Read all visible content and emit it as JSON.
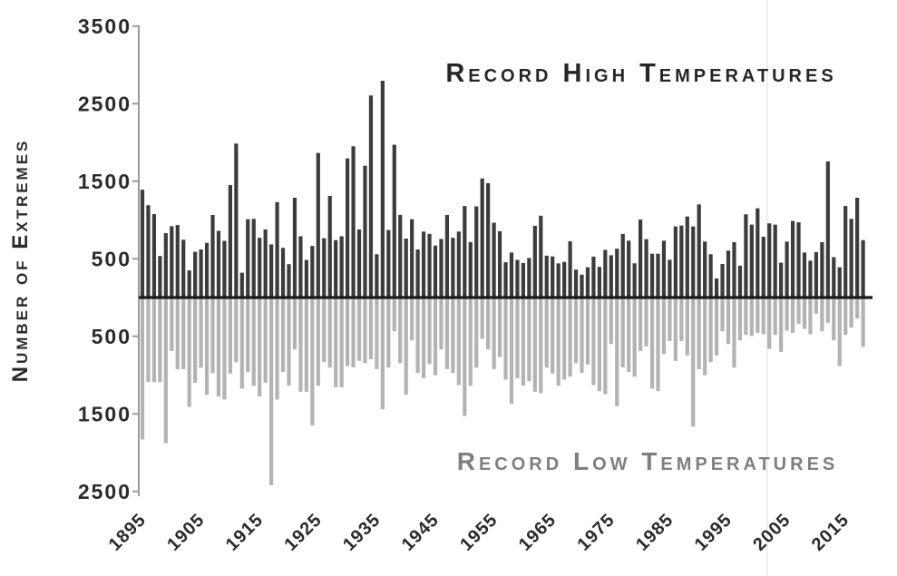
{
  "title_high": "Record High Temperatures",
  "title_low": "Record Low Temperatures",
  "y_axis_title": "Number of Extremes",
  "colors": {
    "high_bar": "#3c3c3c",
    "low_bar": "#b3b3b3",
    "high_title": "#262626",
    "low_title": "#7f7f7f",
    "axis_line": "#9a9a9a",
    "zero_line": "#1a1a1a",
    "tick_label": "#2b2b2b",
    "seam_line": "#e9e9e9",
    "background": "#ffffff"
  },
  "y_ticks_top": [
    3500,
    2500,
    1500,
    500
  ],
  "y_ticks_bottom": [
    500,
    1500,
    2500
  ],
  "x_ticks": [
    1895,
    1905,
    1915,
    1925,
    1935,
    1945,
    1955,
    1965,
    1975,
    1985,
    1995,
    2005,
    2015
  ],
  "chart_data": {
    "type": "bar",
    "title": "Record High Temperatures vs Record Low Temperatures",
    "ylabel": "Number of Extremes",
    "ylim": [
      -2500,
      3500
    ],
    "grid": false,
    "legend_position": "inline-annotations",
    "x": [
      1895,
      1896,
      1897,
      1898,
      1899,
      1900,
      1901,
      1902,
      1903,
      1904,
      1905,
      1906,
      1907,
      1908,
      1909,
      1910,
      1911,
      1912,
      1913,
      1914,
      1915,
      1916,
      1917,
      1918,
      1919,
      1920,
      1921,
      1922,
      1923,
      1924,
      1925,
      1926,
      1927,
      1928,
      1929,
      1930,
      1931,
      1932,
      1933,
      1934,
      1935,
      1936,
      1937,
      1938,
      1939,
      1940,
      1941,
      1942,
      1943,
      1944,
      1945,
      1946,
      1947,
      1948,
      1949,
      1950,
      1951,
      1952,
      1953,
      1954,
      1955,
      1956,
      1957,
      1958,
      1959,
      1960,
      1961,
      1962,
      1963,
      1964,
      1965,
      1966,
      1967,
      1968,
      1969,
      1970,
      1971,
      1972,
      1973,
      1974,
      1975,
      1976,
      1977,
      1978,
      1979,
      1980,
      1981,
      1982,
      1983,
      1984,
      1985,
      1986,
      1987,
      1988,
      1989,
      1990,
      1991,
      1992,
      1993,
      1994,
      1995,
      1996,
      1997,
      1998,
      1999,
      2000,
      2001,
      2002,
      2003,
      2004,
      2005,
      2006,
      2007,
      2008,
      2009,
      2010,
      2011,
      2012,
      2013,
      2014,
      2015,
      2016,
      2017,
      2018
    ],
    "series": [
      {
        "name": "Record High Temperatures",
        "direction": "up",
        "values": [
          1390,
          1190,
          1075,
          535,
          830,
          920,
          935,
          745,
          350,
          590,
          620,
          705,
          1065,
          860,
          730,
          1450,
          1985,
          320,
          1010,
          1015,
          770,
          878,
          685,
          1230,
          640,
          430,
          1287,
          790,
          485,
          665,
          1864,
          765,
          1310,
          740,
          790,
          1794,
          1950,
          878,
          1700,
          2605,
          558,
          2795,
          870,
          1970,
          1065,
          760,
          1010,
          620,
          850,
          820,
          670,
          755,
          1065,
          770,
          850,
          1180,
          715,
          1175,
          1535,
          1475,
          965,
          855,
          455,
          580,
          485,
          445,
          510,
          925,
          1055,
          540,
          530,
          440,
          460,
          725,
          360,
          295,
          390,
          527,
          395,
          615,
          545,
          630,
          820,
          733,
          441,
          1006,
          753,
          565,
          565,
          733,
          487,
          917,
          928,
          1045,
          917,
          1201,
          722,
          558,
          246,
          433,
          605,
          714,
          410,
          1073,
          940,
          1151,
          784,
          956,
          940,
          449,
          722,
          987,
          970,
          580,
          475,
          585,
          714,
          1755,
          520,
          390,
          1180,
          1015,
          1287,
          740
        ]
      },
      {
        "name": "Record Low Temperatures",
        "direction": "down",
        "values": [
          1830,
          1090,
          1090,
          1090,
          1878,
          690,
          925,
          925,
          1410,
          1100,
          905,
          1255,
          975,
          1275,
          1315,
          980,
          835,
          1175,
          960,
          1140,
          1275,
          1100,
          2420,
          1315,
          960,
          1137,
          670,
          1215,
          1215,
          1650,
          1137,
          833,
          903,
          1157,
          1157,
          884,
          900,
          817,
          845,
          794,
          923,
          1441,
          903,
          435,
          845,
          1254,
          552,
          973,
          1040,
          856,
          1001,
          669,
          923,
          973,
          1129,
          1527,
          1137,
          903,
          533,
          669,
          923,
          767,
          1059,
          1371,
          1040,
          1137,
          1079,
          1215,
          1235,
          903,
          981,
          1137,
          1059,
          1020,
          845,
          973,
          864,
          1129,
          1207,
          1246,
          600,
          1402,
          900,
          960,
          1020,
          689,
          630,
          1176,
          1207,
          728,
          560,
          817,
          560,
          747,
          1664,
          923,
          1001,
          833,
          747,
          435,
          599,
          903,
          552,
          482,
          494,
          455,
          474,
          661,
          482,
          700,
          427,
          455,
          338,
          404,
          474,
          209,
          435,
          326,
          552,
          884,
          482,
          388,
          271,
          638
        ]
      }
    ]
  }
}
